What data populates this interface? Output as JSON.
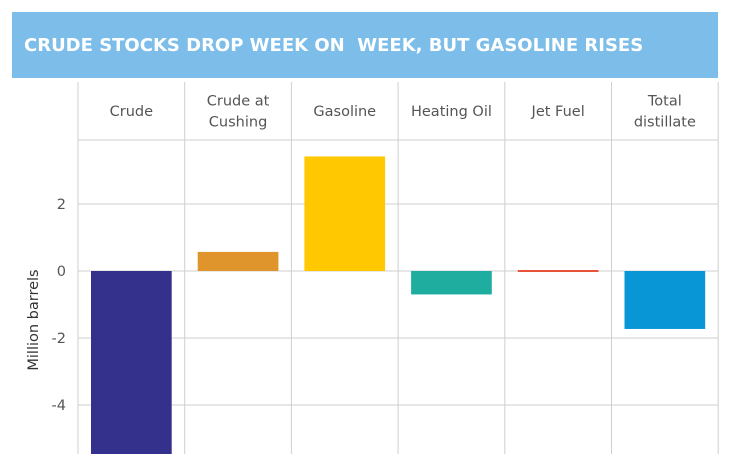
{
  "chart_data": {
    "type": "bar",
    "title": "CRUDE STOCKS DROP WEEK ON  WEEK, BUT GASOLINE RISES",
    "ylabel": "Million barrels",
    "categories": [
      [
        "Crude"
      ],
      [
        "Crude at",
        "Cushing"
      ],
      [
        "Gasoline"
      ],
      [
        "Heating Oil"
      ],
      [
        "Jet Fuel"
      ],
      [
        "Total",
        "distillate"
      ]
    ],
    "values": [
      -5.6,
      0.57,
      3.42,
      -0.7,
      -0.05,
      -1.73
    ],
    "colors": [
      "#34318c",
      "#e0952c",
      "#ffc800",
      "#1fada0",
      "#e8543a",
      "#0896d6"
    ],
    "yticks": [
      2,
      0,
      -2,
      -4
    ],
    "ylim": [
      -5.5,
      3.9
    ],
    "grid": true,
    "legend": "none"
  }
}
